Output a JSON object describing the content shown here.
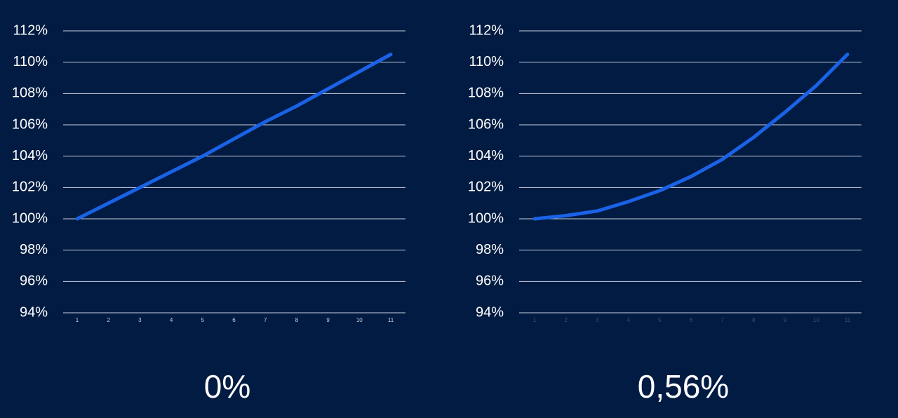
{
  "chart_data": [
    {
      "type": "line",
      "caption": "0%",
      "categories": [
        "1",
        "2",
        "3",
        "4",
        "5",
        "6",
        "7",
        "8",
        "9",
        "10",
        "11"
      ],
      "series": [
        {
          "color": "#1a62e6",
          "values": [
            100,
            101,
            102,
            103,
            104,
            105.1,
            106.2,
            107.2,
            108.3,
            109.4,
            110.5
          ]
        }
      ],
      "ylim": [
        94,
        112
      ],
      "yticks": [
        {
          "value": 94,
          "label": "94%"
        },
        {
          "value": 96,
          "label": "96%"
        },
        {
          "value": 98,
          "label": "98%"
        },
        {
          "value": 100,
          "label": "100%"
        },
        {
          "value": 102,
          "label": "102%"
        },
        {
          "value": 104,
          "label": "104%"
        },
        {
          "value": 106,
          "label": "106%"
        },
        {
          "value": 108,
          "label": "108%"
        },
        {
          "value": 110,
          "label": "110%"
        },
        {
          "value": 112,
          "label": "112%"
        }
      ],
      "grid": true,
      "xtick_color": "#c8cfdc"
    },
    {
      "type": "line",
      "caption": "0,56%",
      "categories": [
        "1",
        "2",
        "3",
        "4",
        "5",
        "6",
        "7",
        "8",
        "9",
        "10",
        "11"
      ],
      "series": [
        {
          "color": "#1a62e6",
          "values": [
            100,
            100.2,
            100.5,
            101.1,
            101.8,
            102.7,
            103.8,
            105.2,
            106.8,
            108.5,
            110.5
          ]
        }
      ],
      "ylim": [
        94,
        112
      ],
      "yticks": [
        {
          "value": 94,
          "label": "94%"
        },
        {
          "value": 96,
          "label": "96%"
        },
        {
          "value": 98,
          "label": "98%"
        },
        {
          "value": 100,
          "label": "100%"
        },
        {
          "value": 102,
          "label": "102%"
        },
        {
          "value": 104,
          "label": "104%"
        },
        {
          "value": 106,
          "label": "106%"
        },
        {
          "value": 108,
          "label": "108%"
        },
        {
          "value": 110,
          "label": "110%"
        },
        {
          "value": 112,
          "label": "112%"
        }
      ],
      "grid": true,
      "xtick_color": "#3d4f72"
    }
  ]
}
